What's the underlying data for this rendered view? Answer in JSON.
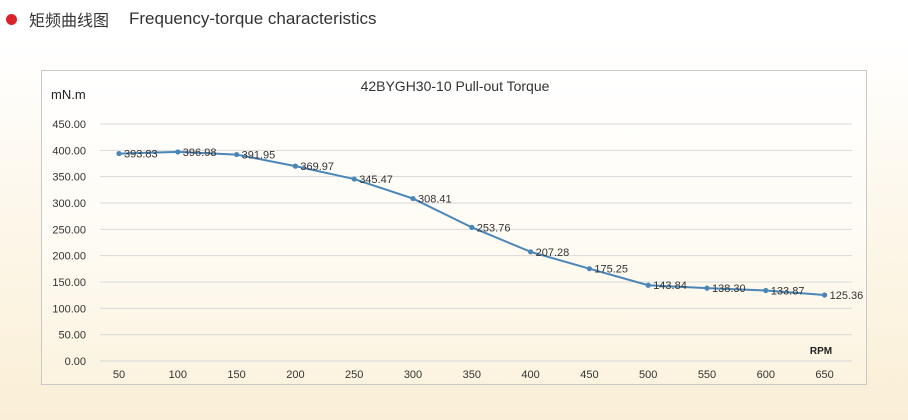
{
  "header": {
    "title_cn": "矩频曲线图",
    "title_en": "Frequency-torque characteristics"
  },
  "colors": {
    "bullet": "#d9252a",
    "series_line": "#4a86b8",
    "grid": "#d9d9d9"
  },
  "chart_data": {
    "type": "line",
    "title": "42BYGH30-10 Pull-out Torque",
    "ylabel": "mN.m",
    "xlabel": "RPM",
    "categories": [
      "50",
      "100",
      "150",
      "200",
      "250",
      "300",
      "350",
      "400",
      "450",
      "500",
      "550",
      "600",
      "650"
    ],
    "series": [
      {
        "values": [
          393.83,
          396.98,
          391.95,
          369.97,
          345.47,
          308.41,
          253.76,
          207.28,
          175.25,
          143.84,
          138.3,
          133.87,
          125.36
        ],
        "labels": [
          "393.83",
          "396.98",
          "391.95",
          "369.97",
          "345.47",
          "308.41",
          "253.76",
          "207.28",
          "175.25",
          "143.84",
          "138.30",
          "133.87",
          "125.36"
        ]
      }
    ],
    "ylim": [
      0,
      450
    ],
    "yticks": [
      "0.00",
      "50.00",
      "100.00",
      "150.00",
      "200.00",
      "250.00",
      "300.00",
      "350.00",
      "400.00",
      "450.00"
    ],
    "ytick_values": [
      0,
      50,
      100,
      150,
      200,
      250,
      300,
      350,
      400,
      450
    ],
    "grid": "horizontal",
    "legend": "none"
  }
}
